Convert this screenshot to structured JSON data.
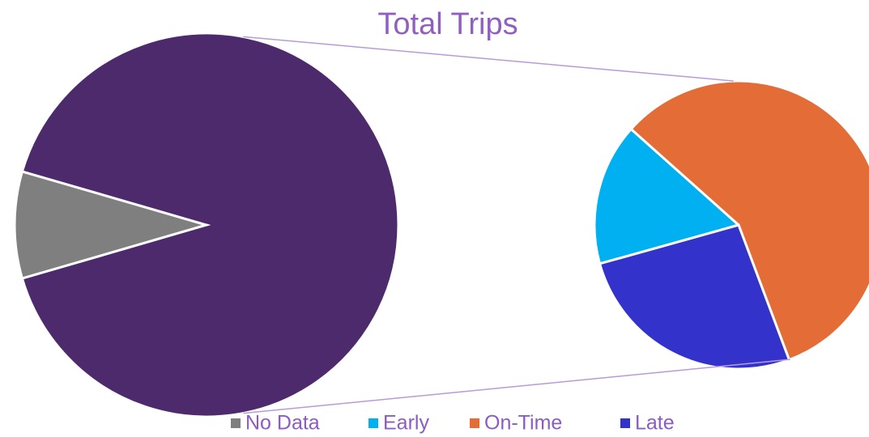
{
  "chart_data": {
    "type": "pie-of-pie",
    "title": "Total Trips",
    "categories": [
      "No Data",
      "Early",
      "On-Time",
      "Late"
    ],
    "values": [
      9,
      14.5,
      52.5,
      24
    ],
    "colors": [
      "#7f7f7f",
      "#00b0f0",
      "#e46c36",
      "#3333cc"
    ],
    "other_color": "#4d2a6b",
    "secondary": [
      1,
      2,
      3
    ]
  }
}
